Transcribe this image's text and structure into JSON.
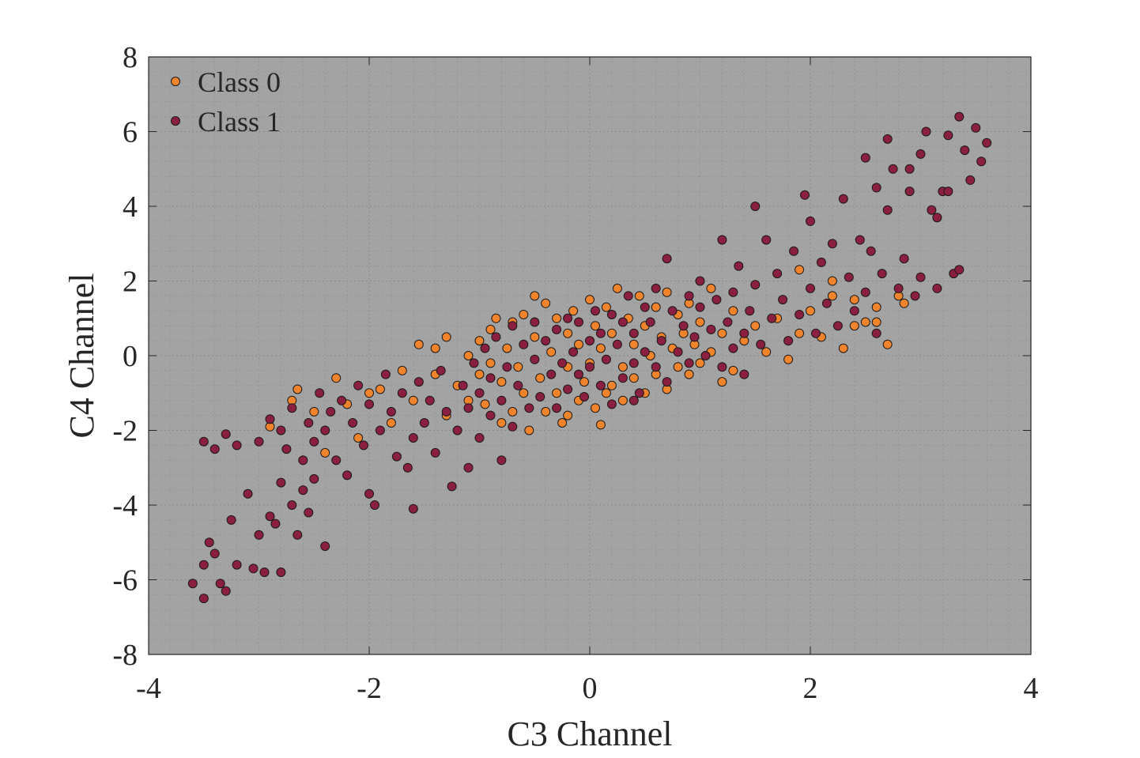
{
  "chart_data": {
    "type": "scatter",
    "title": "",
    "xlabel": "C3 Channel",
    "ylabel": "C4 Channel",
    "xlim": [
      -4,
      4
    ],
    "ylim": [
      -8,
      8
    ],
    "xticks": [
      -4,
      -2,
      0,
      2,
      4
    ],
    "yticks": [
      -8,
      -6,
      -4,
      -2,
      0,
      2,
      4,
      6,
      8
    ],
    "xtick_labels": [
      "-4",
      "-2",
      "0",
      "2",
      "4"
    ],
    "ytick_labels": [
      "-8",
      "-6",
      "-4",
      "-2",
      "0",
      "2",
      "4",
      "6",
      "8"
    ],
    "grid": "on (major and minor, dotted)",
    "legend_position": "top-left",
    "background_color": "#a3a3a3",
    "series": [
      {
        "name": "Class 0",
        "color": "#f0842c",
        "points": [
          [
            -2.9,
            -1.9
          ],
          [
            -2.7,
            -1.2
          ],
          [
            -2.65,
            -0.9
          ],
          [
            -2.5,
            -1.5
          ],
          [
            -2.4,
            -2.6
          ],
          [
            -2.3,
            -0.6
          ],
          [
            -2.2,
            -1.3
          ],
          [
            -2.1,
            -2.2
          ],
          [
            -2.0,
            -1.0
          ],
          [
            -1.9,
            -0.9
          ],
          [
            -1.8,
            -1.8
          ],
          [
            -1.7,
            -0.4
          ],
          [
            -1.6,
            -1.2
          ],
          [
            -1.55,
            0.3
          ],
          [
            -1.4,
            -0.5
          ],
          [
            -1.3,
            -1.6
          ],
          [
            -1.4,
            0.2
          ],
          [
            -1.3,
            0.5
          ],
          [
            -1.2,
            -0.8
          ],
          [
            -1.1,
            -1.2
          ],
          [
            -1.1,
            0.0
          ],
          [
            -1.0,
            -0.5
          ],
          [
            -1.0,
            0.4
          ],
          [
            -0.95,
            -1.3
          ],
          [
            -0.9,
            -0.2
          ],
          [
            -0.9,
            0.7
          ],
          [
            -0.85,
            1.0
          ],
          [
            -0.8,
            -1.8
          ],
          [
            -0.8,
            -0.7
          ],
          [
            -0.75,
            0.2
          ],
          [
            -0.7,
            -1.5
          ],
          [
            -0.7,
            0.9
          ],
          [
            -0.65,
            -0.3
          ],
          [
            -0.6,
            1.1
          ],
          [
            -0.6,
            -1.0
          ],
          [
            -0.55,
            -2.0
          ],
          [
            -0.5,
            1.6
          ],
          [
            -0.5,
            0.5
          ],
          [
            -0.45,
            -0.6
          ],
          [
            -0.4,
            -1.5
          ],
          [
            -0.4,
            1.4
          ],
          [
            -0.35,
            0.1
          ],
          [
            -0.3,
            -1.0
          ],
          [
            -0.3,
            1.0
          ],
          [
            -0.25,
            -1.8
          ],
          [
            -0.2,
            0.6
          ],
          [
            -0.2,
            -0.3
          ],
          [
            -0.15,
            1.2
          ],
          [
            -0.1,
            -1.2
          ],
          [
            -0.1,
            0.3
          ],
          [
            -0.05,
            -0.7
          ],
          [
            0.0,
            1.5
          ],
          [
            0.0,
            -0.2
          ],
          [
            0.05,
            0.8
          ],
          [
            0.05,
            -1.4
          ],
          [
            0.1,
            -1.85
          ],
          [
            0.1,
            0.2
          ],
          [
            0.15,
            1.3
          ],
          [
            0.2,
            -0.8
          ],
          [
            0.2,
            0.6
          ],
          [
            0.25,
            1.8
          ],
          [
            0.3,
            -0.3
          ],
          [
            0.3,
            -1.2
          ],
          [
            0.35,
            1.0
          ],
          [
            0.4,
            0.3
          ],
          [
            0.4,
            -0.6
          ],
          [
            0.45,
            1.6
          ],
          [
            0.5,
            -1.0
          ],
          [
            0.5,
            0.8
          ],
          [
            0.55,
            0.0
          ],
          [
            0.6,
            1.3
          ],
          [
            0.6,
            -0.5
          ],
          [
            0.65,
            0.5
          ],
          [
            0.7,
            -0.9
          ],
          [
            0.7,
            1.7
          ],
          [
            0.75,
            0.2
          ],
          [
            0.8,
            -0.3
          ],
          [
            0.8,
            1.1
          ],
          [
            0.85,
            0.6
          ],
          [
            0.9,
            -0.5
          ],
          [
            0.9,
            1.4
          ],
          [
            0.95,
            0.3
          ],
          [
            1.0,
            -0.2
          ],
          [
            1.0,
            0.9
          ],
          [
            1.1,
            1.8
          ],
          [
            1.1,
            0.1
          ],
          [
            1.2,
            -0.7
          ],
          [
            1.2,
            0.6
          ],
          [
            1.3,
            1.2
          ],
          [
            1.3,
            -0.4
          ],
          [
            1.4,
            0.4
          ],
          [
            1.5,
            0.8
          ],
          [
            1.6,
            0.1
          ],
          [
            1.7,
            1.0
          ],
          [
            1.8,
            -0.1
          ],
          [
            1.9,
            0.6
          ],
          [
            2.0,
            1.2
          ],
          [
            2.1,
            0.5
          ],
          [
            2.2,
            2.0
          ],
          [
            2.3,
            0.2
          ],
          [
            2.4,
            1.5
          ],
          [
            2.5,
            0.9
          ],
          [
            2.6,
            1.3
          ],
          [
            2.7,
            0.3
          ],
          [
            2.8,
            1.6
          ],
          [
            2.85,
            1.4
          ],
          [
            2.6,
            0.9
          ],
          [
            2.4,
            0.8
          ],
          [
            2.2,
            1.6
          ],
          [
            1.9,
            2.3
          ],
          [
            -0.2,
            -1.6
          ],
          [
            0.15,
            -1.0
          ]
        ]
      },
      {
        "name": "Class 1",
        "color": "#8b1f40",
        "points": [
          [
            -3.6,
            -6.1
          ],
          [
            -3.5,
            -6.5
          ],
          [
            -3.5,
            -5.6
          ],
          [
            -3.45,
            -5.0
          ],
          [
            -3.4,
            -5.3
          ],
          [
            -3.35,
            -6.1
          ],
          [
            -3.3,
            -6.3
          ],
          [
            -3.25,
            -4.4
          ],
          [
            -3.2,
            -5.6
          ],
          [
            -3.1,
            -3.7
          ],
          [
            -3.05,
            -5.7
          ],
          [
            -3.0,
            -4.8
          ],
          [
            -2.95,
            -5.8
          ],
          [
            -2.9,
            -4.3
          ],
          [
            -2.85,
            -4.5
          ],
          [
            -2.8,
            -5.8
          ],
          [
            -2.8,
            -3.4
          ],
          [
            -2.7,
            -4.0
          ],
          [
            -2.65,
            -4.8
          ],
          [
            -2.6,
            -3.6
          ],
          [
            -2.55,
            -4.2
          ],
          [
            -2.5,
            -3.3
          ],
          [
            -2.4,
            -5.1
          ],
          [
            -3.5,
            -2.3
          ],
          [
            -3.4,
            -2.5
          ],
          [
            -3.3,
            -2.1
          ],
          [
            -3.2,
            -2.4
          ],
          [
            -3.0,
            -2.3
          ],
          [
            -2.9,
            -1.7
          ],
          [
            -2.8,
            -2.0
          ],
          [
            -2.75,
            -2.5
          ],
          [
            -2.7,
            -1.4
          ],
          [
            -2.6,
            -2.8
          ],
          [
            -2.55,
            -1.8
          ],
          [
            -2.5,
            -2.3
          ],
          [
            -2.45,
            -1.0
          ],
          [
            -2.4,
            -2.0
          ],
          [
            -2.35,
            -1.5
          ],
          [
            -2.3,
            -2.8
          ],
          [
            -2.25,
            -1.2
          ],
          [
            -2.2,
            -3.2
          ],
          [
            -2.15,
            -1.8
          ],
          [
            -2.1,
            -0.8
          ],
          [
            -2.05,
            -2.4
          ],
          [
            -2.0,
            -3.7
          ],
          [
            -2.0,
            -1.3
          ],
          [
            -1.95,
            -4.0
          ],
          [
            -1.9,
            -2.0
          ],
          [
            -1.85,
            -0.5
          ],
          [
            -1.8,
            -1.5
          ],
          [
            -1.75,
            -2.7
          ],
          [
            -1.7,
            -1.0
          ],
          [
            -1.65,
            -3.0
          ],
          [
            -1.6,
            -4.1
          ],
          [
            -1.6,
            -2.2
          ],
          [
            -1.55,
            -0.7
          ],
          [
            -1.5,
            -1.8
          ],
          [
            -1.45,
            -1.2
          ],
          [
            -1.4,
            -2.6
          ],
          [
            -1.35,
            -0.4
          ],
          [
            -1.3,
            -1.5
          ],
          [
            -1.25,
            -3.5
          ],
          [
            -1.2,
            -2.0
          ],
          [
            -1.15,
            -0.8
          ],
          [
            -1.1,
            -3.0
          ],
          [
            -1.1,
            -1.4
          ],
          [
            -1.05,
            -0.2
          ],
          [
            -1.0,
            -2.2
          ],
          [
            -1.0,
            -1.0
          ],
          [
            -0.95,
            0.2
          ],
          [
            -0.9,
            -1.6
          ],
          [
            -0.9,
            -0.6
          ],
          [
            -0.85,
            0.5
          ],
          [
            -0.8,
            -2.8
          ],
          [
            -0.8,
            -1.2
          ],
          [
            -0.75,
            -0.3
          ],
          [
            -0.7,
            0.8
          ],
          [
            -0.7,
            -1.9
          ],
          [
            -0.65,
            -0.8
          ],
          [
            -0.6,
            0.3
          ],
          [
            -0.55,
            -1.4
          ],
          [
            -0.5,
            -0.1
          ],
          [
            -0.5,
            0.9
          ],
          [
            -0.45,
            -1.1
          ],
          [
            -0.4,
            0.4
          ],
          [
            -0.35,
            -0.5
          ],
          [
            -0.3,
            0.7
          ],
          [
            -0.3,
            -1.4
          ],
          [
            -0.25,
            -0.2
          ],
          [
            -0.2,
            1.0
          ],
          [
            -0.2,
            -0.9
          ],
          [
            -0.15,
            0.1
          ],
          [
            -0.1,
            -0.5
          ],
          [
            -0.1,
            0.9
          ],
          [
            -0.05,
            -1.1
          ],
          [
            0.0,
            0.4
          ],
          [
            0.0,
            -0.3
          ],
          [
            0.05,
            1.2
          ],
          [
            0.1,
            -0.8
          ],
          [
            0.1,
            0.6
          ],
          [
            0.15,
            -0.1
          ],
          [
            0.2,
            1.1
          ],
          [
            0.2,
            -1.3
          ],
          [
            0.25,
            0.3
          ],
          [
            0.3,
            -0.6
          ],
          [
            0.3,
            0.9
          ],
          [
            0.35,
            1.6
          ],
          [
            0.4,
            -0.2
          ],
          [
            0.4,
            0.6
          ],
          [
            0.45,
            -1.0
          ],
          [
            0.5,
            1.3
          ],
          [
            0.5,
            0.1
          ],
          [
            0.55,
            0.9
          ],
          [
            0.6,
            -0.3
          ],
          [
            0.6,
            1.8
          ],
          [
            0.65,
            0.4
          ],
          [
            0.7,
            2.6
          ],
          [
            0.7,
            -0.7
          ],
          [
            0.75,
            1.2
          ],
          [
            0.8,
            0.1
          ],
          [
            0.85,
            0.8
          ],
          [
            0.9,
            1.6
          ],
          [
            0.9,
            -0.2
          ],
          [
            0.95,
            0.5
          ],
          [
            1.0,
            1.3
          ],
          [
            1.0,
            2.0
          ],
          [
            1.05,
            0.0
          ],
          [
            1.1,
            0.7
          ],
          [
            1.15,
            1.5
          ],
          [
            1.2,
            3.1
          ],
          [
            1.2,
            -0.3
          ],
          [
            1.25,
            0.9
          ],
          [
            1.3,
            1.7
          ],
          [
            1.3,
            0.2
          ],
          [
            1.35,
            2.4
          ],
          [
            1.4,
            0.6
          ],
          [
            1.45,
            1.2
          ],
          [
            1.5,
            4.0
          ],
          [
            1.5,
            1.9
          ],
          [
            1.55,
            0.3
          ],
          [
            1.6,
            3.1
          ],
          [
            1.65,
            1.0
          ],
          [
            1.7,
            2.2
          ],
          [
            1.75,
            1.5
          ],
          [
            1.8,
            0.4
          ],
          [
            1.85,
            2.8
          ],
          [
            1.9,
            1.1
          ],
          [
            1.95,
            4.3
          ],
          [
            2.0,
            1.8
          ],
          [
            2.0,
            3.6
          ],
          [
            2.05,
            0.6
          ],
          [
            2.1,
            2.5
          ],
          [
            2.15,
            1.4
          ],
          [
            2.2,
            3.0
          ],
          [
            2.25,
            0.8
          ],
          [
            2.3,
            4.2
          ],
          [
            2.35,
            2.1
          ],
          [
            2.4,
            1.2
          ],
          [
            2.45,
            3.1
          ],
          [
            2.5,
            5.3
          ],
          [
            2.5,
            1.7
          ],
          [
            2.55,
            2.8
          ],
          [
            2.6,
            4.5
          ],
          [
            2.6,
            0.6
          ],
          [
            2.65,
            2.2
          ],
          [
            2.7,
            3.9
          ],
          [
            2.75,
            5.0
          ],
          [
            2.8,
            1.8
          ],
          [
            2.85,
            2.6
          ],
          [
            2.9,
            4.4
          ],
          [
            2.95,
            1.6
          ],
          [
            3.0,
            5.4
          ],
          [
            3.0,
            2.1
          ],
          [
            3.05,
            6.0
          ],
          [
            3.1,
            3.9
          ],
          [
            3.15,
            1.8
          ],
          [
            3.2,
            4.4
          ],
          [
            3.25,
            5.9
          ],
          [
            3.3,
            2.2
          ],
          [
            3.35,
            6.4
          ],
          [
            3.4,
            5.5
          ],
          [
            3.45,
            4.7
          ],
          [
            3.5,
            6.1
          ],
          [
            3.55,
            5.2
          ],
          [
            3.6,
            5.7
          ],
          [
            3.35,
            2.3
          ],
          [
            3.25,
            4.4
          ],
          [
            3.15,
            3.7
          ],
          [
            2.9,
            5.0
          ],
          [
            2.7,
            5.8
          ],
          [
            1.4,
            -0.5
          ],
          [
            0.4,
            -1.2
          ]
        ]
      }
    ]
  }
}
